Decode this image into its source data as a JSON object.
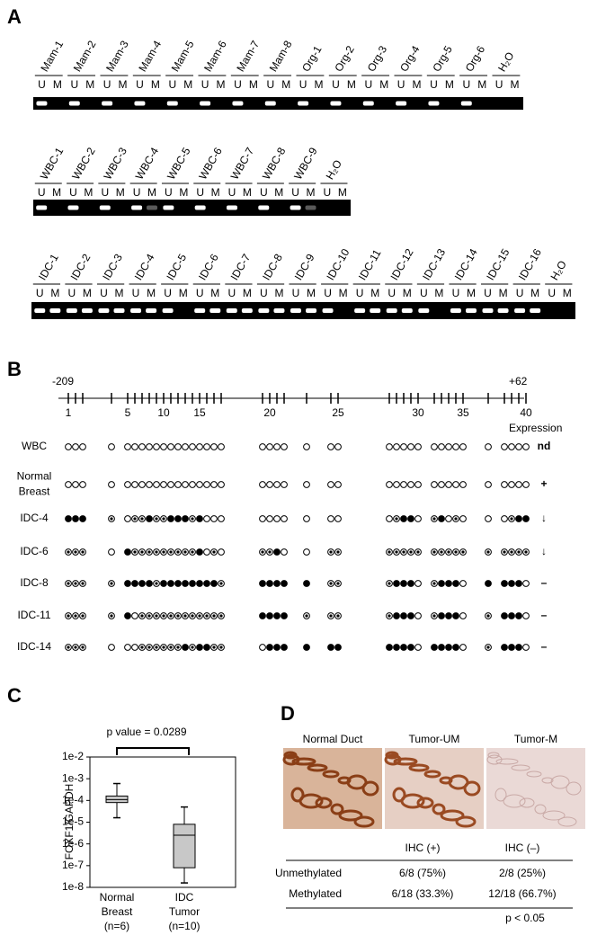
{
  "panel_a": {
    "label": "A",
    "lane_letters": [
      "U",
      "M"
    ],
    "gels": [
      {
        "samples": [
          "Mam-1",
          "Mam-2",
          "Mam-3",
          "Mam-4",
          "Mam-5",
          "Mam-6",
          "Mam-7",
          "Mam-8",
          "Org-1",
          "Org-2",
          "Org-3",
          "Org-4",
          "Org-5",
          "Org-6",
          "H₂O"
        ]
      },
      {
        "samples": [
          "WBC-1",
          "WBC-2",
          "WBC-3",
          "WBC-4",
          "WBC-5",
          "WBC-6",
          "WBC-7",
          "WBC-8",
          "WBC-9",
          "H₂O"
        ]
      },
      {
        "samples": [
          "IDC-1",
          "IDC-2",
          "IDC-3",
          "IDC-4",
          "IDC-5",
          "IDC-6",
          "IDC-7",
          "IDC-8",
          "IDC-9",
          "IDC-10",
          "IDC-11",
          "IDC-12",
          "IDC-13",
          "IDC-14",
          "IDC-15",
          "IDC-16",
          "H₂O"
        ]
      }
    ]
  },
  "panel_b": {
    "label": "B",
    "start": "-209",
    "end": "+62",
    "cpg_labels": [
      "1",
      "5",
      "10",
      "15",
      "20",
      "25",
      "30",
      "35",
      "40"
    ],
    "expression_header": "Expression",
    "rows": [
      {
        "name": [
          "WBC"
        ],
        "expression": "nd"
      },
      {
        "name": [
          "Normal",
          "Breast"
        ],
        "expression": "+"
      },
      {
        "name": [
          "IDC-4"
        ],
        "expression": "↓"
      },
      {
        "name": [
          "IDC-6"
        ],
        "expression": "↓"
      },
      {
        "name": [
          "IDC-8"
        ],
        "expression": "–"
      },
      {
        "name": [
          "IDC-11"
        ],
        "expression": "–"
      },
      {
        "name": [
          "IDC-14"
        ],
        "expression": "–"
      }
    ]
  },
  "chart_data": {
    "type": "box",
    "panel_label": "C",
    "ylabel": "FOXF1/GAPDH",
    "annotation": "p value = 0.0289",
    "log_scale": true,
    "color": "#c8c8c8",
    "ylim": [
      1e-08,
      0.01
    ],
    "yticks": [
      {
        "value": 1e-08,
        "label": "1e-8"
      },
      {
        "value": 1e-07,
        "label": "1e-7"
      },
      {
        "value": 1e-06,
        "label": "1e-6"
      },
      {
        "value": 1e-05,
        "label": "1e-5"
      },
      {
        "value": 0.0001,
        "label": "1e-4"
      },
      {
        "value": 0.001,
        "label": "1e-3"
      },
      {
        "value": 0.01,
        "label": "1e-2"
      }
    ],
    "categories": [
      [
        "Normal",
        "Breast",
        "(n=6)"
      ],
      [
        "IDC",
        "Tumor",
        "(n=10)"
      ]
    ],
    "boxes": [
      {
        "whisker_low": 1.6e-05,
        "q1": 8e-05,
        "median": 0.00011,
        "q3": 0.00016,
        "whisker_high": 0.0006
      },
      {
        "whisker_low": 1.6e-08,
        "q1": 8e-08,
        "median": 2.5e-06,
        "q3": 8e-06,
        "whisker_high": 5e-05
      }
    ]
  },
  "panel_d": {
    "label": "D",
    "image_titles": [
      "Normal Duct",
      "Tumor-UM",
      "Tumor-M"
    ],
    "table": {
      "header": [
        "IHC (+)",
        "IHC (–)"
      ],
      "rows": [
        [
          "Unmethylated",
          "6/8 (75%)",
          "2/8 (25%)"
        ],
        [
          "Methylated",
          "6/18 (33.3%)",
          "12/18 (66.7%)"
        ]
      ],
      "note": "p < 0.05"
    }
  }
}
